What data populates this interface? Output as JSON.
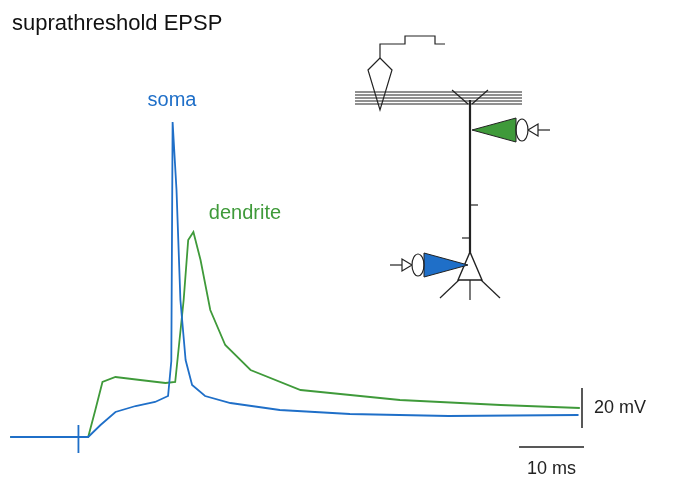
{
  "chart_data": {
    "type": "line",
    "title": "suprathreshold EPSP",
    "xlim": [
      -11,
      82
    ],
    "ylim": [
      -12,
      170
    ],
    "tick_labels": false,
    "grid": false,
    "series": [
      {
        "name": "soma",
        "color": "#1f6fc8",
        "x": [
          -10.5,
          0,
          0,
          0,
          0,
          1.5,
          3.4,
          5.7,
          8.8,
          11.8,
          13.8,
          14.3,
          14.5,
          15.1,
          15.7,
          16.5,
          17.5,
          19.5,
          23.4,
          31,
          41.8,
          57,
          77
        ],
        "values": [
          0,
          0,
          6,
          -8,
          0,
          0,
          6,
          12.5,
          15.5,
          17.5,
          20.5,
          38,
          157.5,
          123.5,
          68.5,
          38.5,
          26,
          20.5,
          17,
          13.5,
          11.5,
          10.5,
          11
        ]
      },
      {
        "name": "dendrite",
        "color": "#3f9a3a",
        "x": [
          -10.5,
          1.5,
          2.6,
          3.7,
          5.7,
          9.5,
          13.4,
          14.9,
          16.2,
          16.9,
          17.7,
          18.8,
          20.3,
          22.6,
          26.5,
          34.2,
          49.5,
          65,
          77.2
        ],
        "values": [
          0,
          0,
          13.5,
          27.5,
          30,
          28.5,
          27,
          27.5,
          68.5,
          98.5,
          102.5,
          88.5,
          63.5,
          46,
          33.5,
          23.5,
          18.5,
          16,
          14.5
        ]
      }
    ],
    "scale_bars": {
      "x": {
        "value": 10,
        "label": "10 ms"
      },
      "y": {
        "value": 20,
        "label": "20 mV"
      }
    }
  }
}
